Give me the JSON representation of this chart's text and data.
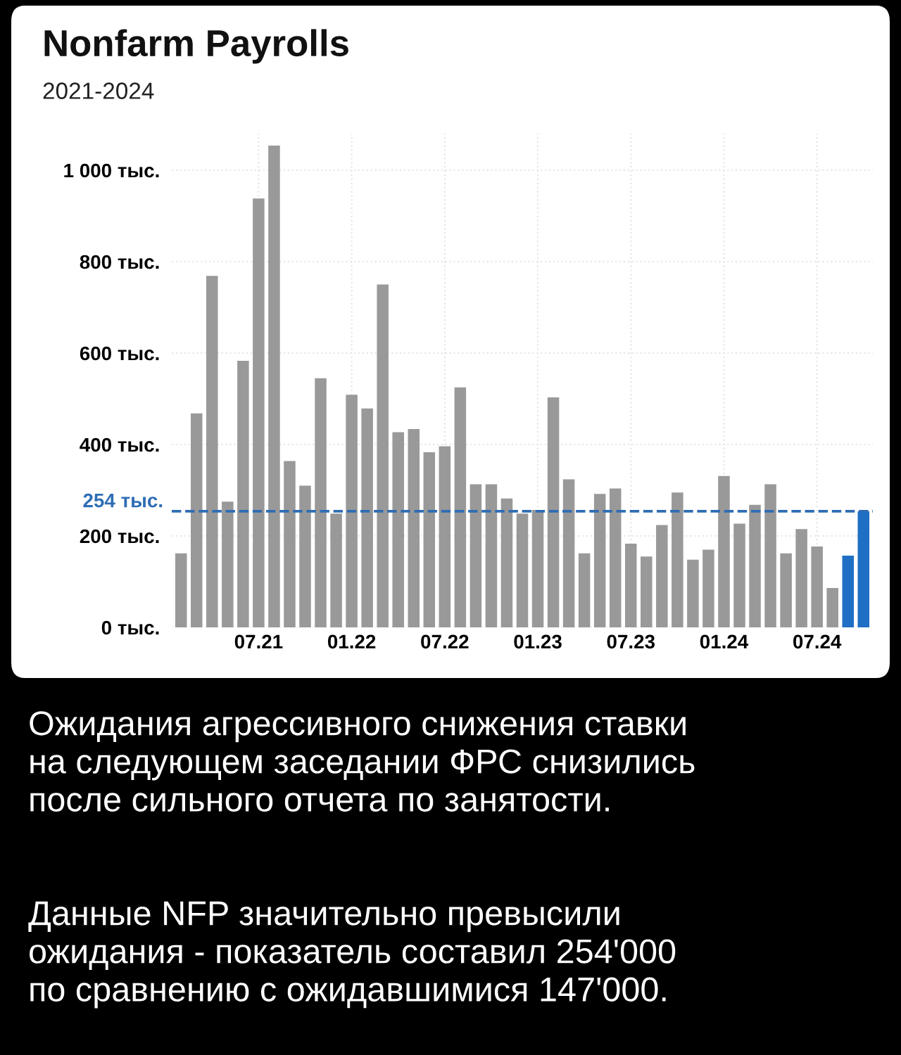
{
  "chart_data": {
    "type": "bar",
    "title": "Nonfarm Payrolls",
    "subtitle": "2021-2024",
    "categories": [
      null,
      null,
      null,
      null,
      null,
      "07.21",
      null,
      null,
      null,
      null,
      null,
      "01.22",
      null,
      null,
      null,
      null,
      null,
      "07.22",
      null,
      null,
      null,
      null,
      null,
      "01.23",
      null,
      null,
      null,
      null,
      null,
      "07.23",
      null,
      null,
      null,
      null,
      null,
      "01.24",
      null,
      null,
      null,
      null,
      null,
      "07.24",
      null,
      null,
      null
    ],
    "values": [
      162,
      468,
      769,
      275,
      583,
      938,
      1054,
      364,
      310,
      545,
      249,
      509,
      479,
      750,
      427,
      434,
      383,
      396,
      525,
      313,
      313,
      282,
      249,
      257,
      503,
      324,
      162,
      292,
      304,
      183,
      155,
      224,
      295,
      148,
      170,
      331,
      227,
      268,
      313,
      162,
      215,
      177,
      86,
      157,
      254
    ],
    "colors": [
      "#999999",
      "#999999",
      "#999999",
      "#999999",
      "#999999",
      "#999999",
      "#999999",
      "#999999",
      "#999999",
      "#999999",
      "#999999",
      "#999999",
      "#999999",
      "#999999",
      "#999999",
      "#999999",
      "#999999",
      "#999999",
      "#999999",
      "#999999",
      "#999999",
      "#999999",
      "#999999",
      "#999999",
      "#999999",
      "#999999",
      "#999999",
      "#999999",
      "#999999",
      "#999999",
      "#999999",
      "#999999",
      "#999999",
      "#999999",
      "#999999",
      "#999999",
      "#999999",
      "#999999",
      "#999999",
      "#999999",
      "#999999",
      "#999999",
      "#999999",
      "#1f6fc5",
      "#1f6fc5"
    ],
    "ylim": [
      0,
      1080
    ],
    "yticks": [
      {
        "value": 0,
        "label": "0 тыс."
      },
      {
        "value": 200,
        "label": "200 тыс."
      },
      {
        "value": 400,
        "label": "400 тыс."
      },
      {
        "value": 600,
        "label": "600 тыс."
      },
      {
        "value": 800,
        "label": "800 тыс."
      },
      {
        "value": 1000,
        "label": "1 000 тыс."
      }
    ],
    "ref_lines": [
      {
        "axis": "y",
        "value": 254,
        "label": "254 тыс.",
        "color": "#2e6db4",
        "line_style": "dashed"
      }
    ],
    "grid": true,
    "annotations": [
      "Ожидания агрессивного снижения ставки\nна следующем заседании ФРС снизились\nпосле сильного отчета по занятости.",
      "Данные NFP значительно превысили\nожидания - показатель составил 254'000\nпо сравнению с ожидавшимися 147'000."
    ]
  }
}
